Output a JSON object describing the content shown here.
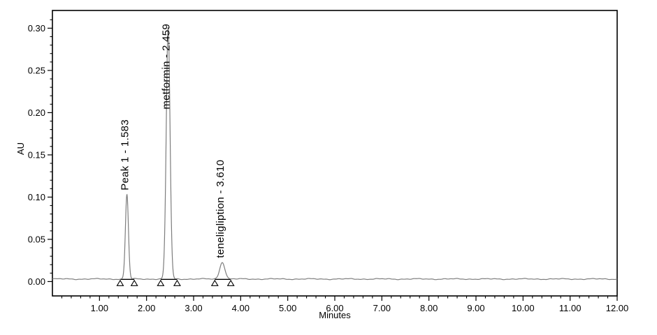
{
  "chart_data": {
    "type": "line",
    "subtype": "hplc-chromatogram",
    "title": "",
    "xlabel": "Minutes",
    "ylabel": "AU",
    "xlim": [
      0,
      12
    ],
    "ylim": [
      -0.017,
      0.321
    ],
    "x_axis": {
      "ticks": [
        1,
        2,
        3,
        4,
        5,
        6,
        7,
        8,
        9,
        10,
        11,
        12
      ],
      "tick_labels": [
        "1.00",
        "2.00",
        "3.00",
        "4.00",
        "5.00",
        "6.00",
        "7.00",
        "8.00",
        "9.00",
        "10.00",
        "11.00",
        "12.00"
      ],
      "minor_step": 0.2
    },
    "y_axis": {
      "ticks": [
        0,
        0.05,
        0.1,
        0.15,
        0.2,
        0.25,
        0.3
      ],
      "tick_labels": [
        "0.00",
        "0.05",
        "0.10",
        "0.15",
        "0.20",
        "0.25",
        "0.30"
      ],
      "minor_step": 0.01
    },
    "grid": "off",
    "baseline_au": 0.003,
    "noise_amplitude_au": 0.0008,
    "peaks": [
      {
        "name": "Peak 1",
        "label": "Peak 1 - 1.583",
        "retention_time_min": 1.583,
        "apex_au": 0.103,
        "sigma_min": 0.032,
        "integration_start_min": 1.44,
        "integration_end_min": 1.74,
        "label_placement": "above_apex"
      },
      {
        "name": "metformin",
        "label": "metformin - 2.459",
        "retention_time_min": 2.459,
        "apex_au": 0.301,
        "sigma_min": 0.04,
        "integration_start_min": 2.3,
        "integration_end_min": 2.65,
        "label_placement": "top"
      },
      {
        "name": "teneligliption",
        "label": "teneligliption - 3.610",
        "retention_time_min": 3.61,
        "apex_au": 0.023,
        "sigma_min": 0.055,
        "integration_start_min": 3.45,
        "integration_end_min": 3.79,
        "label_placement": "above_apex"
      }
    ],
    "colors": {
      "trace": "#7d7d7d",
      "integration": "#000000",
      "marker_fill": "#ffffff",
      "border": "#000000",
      "text": "#000000",
      "background": "#ffffff",
      "plot_background": "#ffffff"
    }
  }
}
